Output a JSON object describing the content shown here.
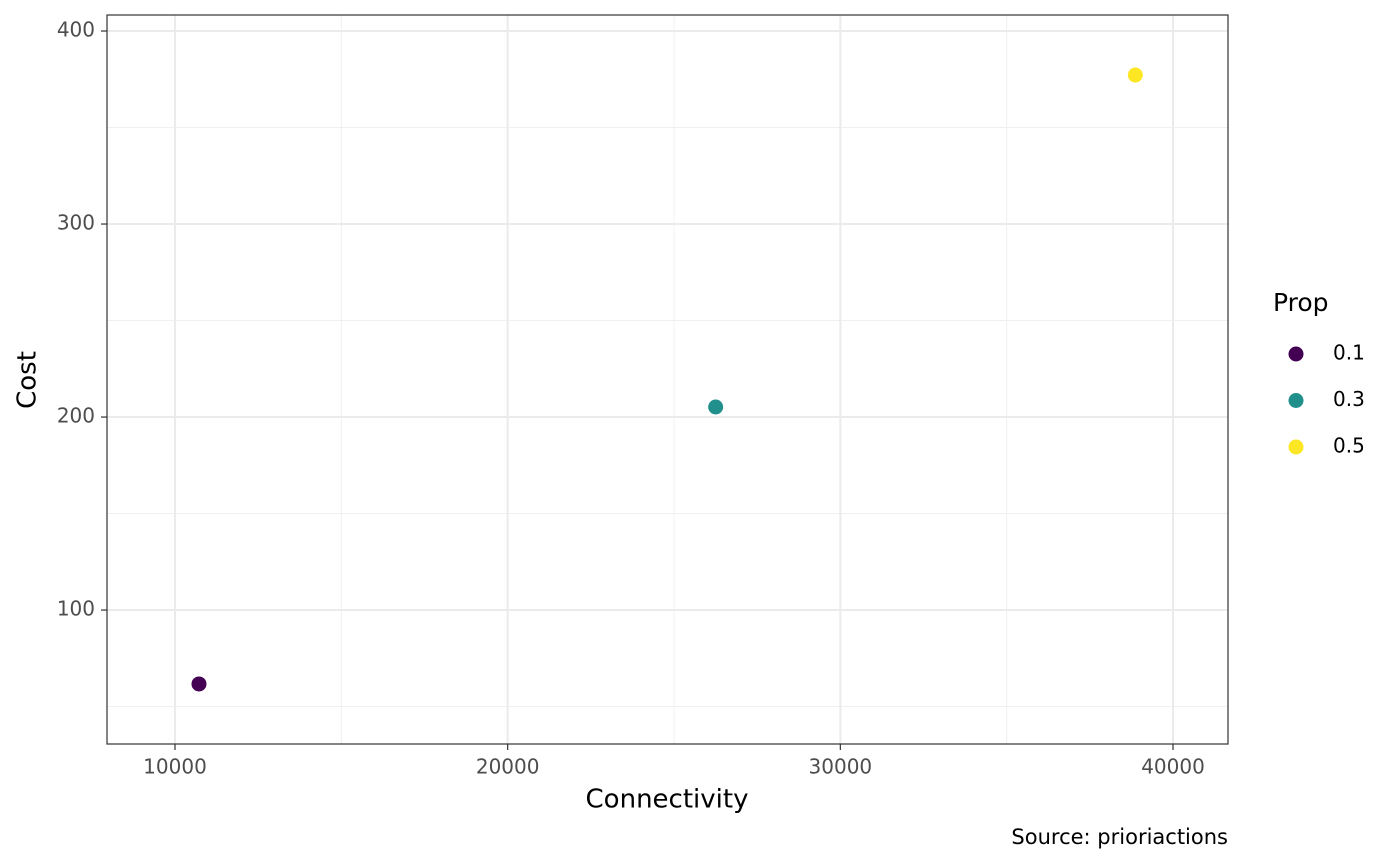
{
  "chart_data": {
    "type": "scatter",
    "x_label": "Connectivity",
    "y_label": "Cost",
    "legend_title": "Prop",
    "caption": "Source: prioriactions",
    "series": [
      {
        "name": "0.1",
        "color": "#440154",
        "x": [
          10721
        ],
        "values": [
          61.7
        ]
      },
      {
        "name": "0.3",
        "color": "#21908c",
        "x": [
          26252
        ],
        "values": [
          205.2
        ]
      },
      {
        "name": "0.5",
        "color": "#fde725",
        "x": [
          38867
        ],
        "values": [
          377.2
        ]
      }
    ],
    "xlim": [
      7956,
      41653
    ],
    "ylim": [
      30.6,
      408.3
    ],
    "xticks": [
      10000,
      20000,
      30000,
      40000
    ],
    "yticks": [
      100,
      200,
      300,
      400
    ],
    "xminor": [
      15000,
      25000,
      35000
    ],
    "yminor": [
      50,
      150,
      250,
      350
    ],
    "grid": true,
    "legend": "right"
  }
}
